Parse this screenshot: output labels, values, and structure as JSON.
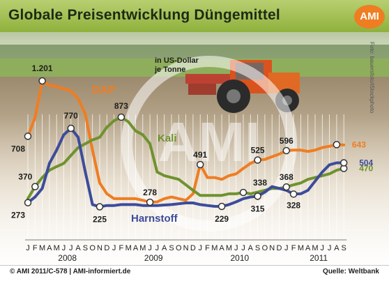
{
  "header": {
    "title": "Globale Preisentwicklung Düngemittel",
    "logo": "AMI"
  },
  "footer": {
    "copyright": "© AMI 2011/C-578 | AMI-informiert.de",
    "source": "Quelle: Weltbank"
  },
  "photo_credit": "Foto: bauersfoto/iStockphoto",
  "colors": {
    "dap": "#ef7d22",
    "kali": "#6f922f",
    "harnstoff": "#3c4c9b",
    "header_green": "#9cba4c",
    "accent_orange": "#ef7d22"
  },
  "chart_data": {
    "type": "line",
    "title": "Globale Preisentwicklung Düngemittel",
    "unit_label": [
      "in US-Dollar",
      "je Tonne"
    ],
    "x_month_labels": [
      "J",
      "F",
      "M",
      "A",
      "M",
      "J",
      "J",
      "A",
      "S",
      "O",
      "N",
      "D",
      "J",
      "F",
      "M",
      "A",
      "M",
      "J",
      "J",
      "A",
      "S",
      "O",
      "N",
      "D",
      "J",
      "F",
      "M",
      "A",
      "M",
      "J",
      "J",
      "A",
      "S",
      "O",
      "N",
      "D",
      "J",
      "F",
      "M",
      "A",
      "M",
      "J",
      "J",
      "A",
      "S"
    ],
    "x_year_labels": [
      "2008",
      "2009",
      "2010",
      "2011"
    ],
    "grid": true,
    "series": [
      {
        "name": "DAP",
        "values": [
          708,
          870,
          1201,
          1160,
          1150,
          1130,
          1110,
          1040,
          900,
          600,
          390,
          330,
          300,
          300,
          300,
          300,
          290,
          278,
          280,
          300,
          310,
          300,
          290,
          330,
          491,
          420,
          420,
          410,
          430,
          440,
          470,
          500,
          525,
          530,
          550,
          570,
          596,
          600,
          600,
          590,
          600,
          620,
          630,
          643,
          640
        ]
      },
      {
        "name": "Kali",
        "values": [
          300,
          370,
          420,
          460,
          480,
          500,
          560,
          620,
          650,
          680,
          700,
          780,
          840,
          873,
          830,
          750,
          720,
          650,
          450,
          430,
          420,
          410,
          380,
          350,
          320,
          320,
          320,
          320,
          330,
          330,
          338,
          330,
          340,
          350,
          360,
          360,
          368,
          380,
          390,
          410,
          420,
          430,
          440,
          460,
          470
        ]
      },
      {
        "name": "Harnstoff",
        "values": [
          273,
          310,
          360,
          500,
          600,
          720,
          770,
          700,
          450,
          250,
          225,
          240,
          240,
          250,
          250,
          250,
          240,
          240,
          240,
          245,
          250,
          260,
          270,
          270,
          250,
          240,
          230,
          229,
          250,
          280,
          300,
          310,
          315,
          340,
          370,
          360,
          350,
          328,
          330,
          350,
          400,
          450,
          490,
          504,
          504
        ]
      }
    ],
    "labeled_points": [
      {
        "series": "DAP",
        "index": 0,
        "value": "708"
      },
      {
        "series": "DAP",
        "index": 2,
        "value": "1.201"
      },
      {
        "series": "DAP",
        "index": 17,
        "value": "278"
      },
      {
        "series": "DAP",
        "index": 24,
        "value": "491"
      },
      {
        "series": "DAP",
        "index": 32,
        "value": "525"
      },
      {
        "series": "DAP",
        "index": 36,
        "value": "596"
      },
      {
        "series": "DAP",
        "index": 43,
        "value": "643"
      },
      {
        "series": "Kali",
        "index": 1,
        "value": "370"
      },
      {
        "series": "Kali",
        "index": 13,
        "value": "873"
      },
      {
        "series": "Kali",
        "index": 30,
        "value": "338"
      },
      {
        "series": "Kali",
        "index": 36,
        "value": "368"
      },
      {
        "series": "Kali",
        "index": 44,
        "value": "470"
      },
      {
        "series": "Harnstoff",
        "index": 0,
        "value": "273"
      },
      {
        "series": "Harnstoff",
        "index": 6,
        "value": "770"
      },
      {
        "series": "Harnstoff",
        "index": 10,
        "value": "225"
      },
      {
        "series": "Harnstoff",
        "index": 27,
        "value": "229"
      },
      {
        "series": "Harnstoff",
        "index": 32,
        "value": "315"
      },
      {
        "series": "Harnstoff",
        "index": 37,
        "value": "328"
      },
      {
        "series": "Harnstoff",
        "index": 44,
        "value": "504"
      }
    ]
  }
}
